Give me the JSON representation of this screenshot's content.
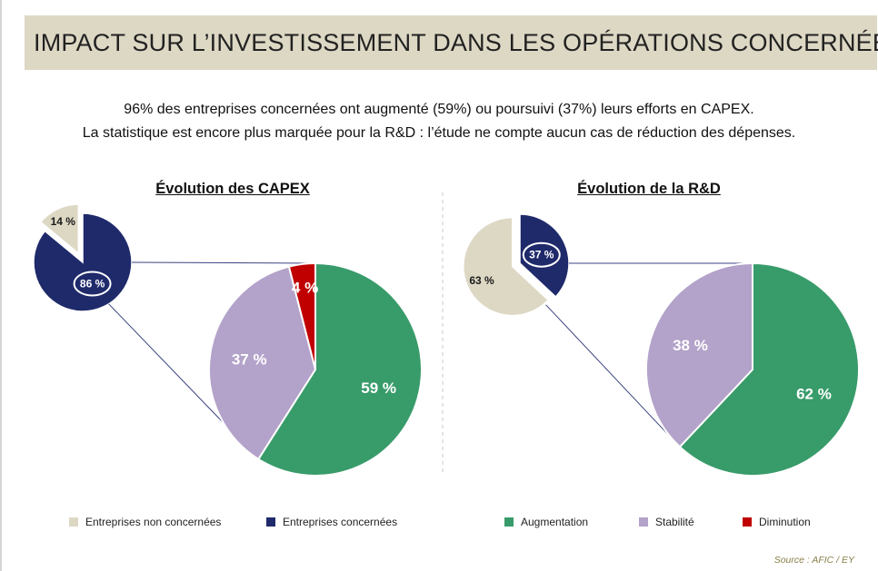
{
  "header": {
    "title": "IMPACT SUR L’INVESTISSEMENT DANS LES OPÉRATIONS CONCERNÉES"
  },
  "intro": {
    "line1": "96% des entreprises concernées ont augmenté (59%) ou poursuivi (37%) leurs efforts en CAPEX.",
    "line2": "La statistique est encore plus marquée pour la R&D : l’étude ne compte aucun cas de réduction des dépenses."
  },
  "colors": {
    "non_concerned": "#ddd8c4",
    "concerned": "#1f2a6b",
    "increase": "#389b6a",
    "stable": "#b3a2c9",
    "decrease": "#c00000",
    "connector": "#3b4380"
  },
  "chart_data": [
    {
      "type": "pie",
      "title": "Évolution des CAPEX",
      "overview": {
        "slices": [
          {
            "label": "Entreprises non concernées",
            "value": 14,
            "text": "14 %"
          },
          {
            "label": "Entreprises concernées",
            "value": 86,
            "text": "86 %"
          }
        ]
      },
      "detail": {
        "of": "Entreprises concernées",
        "slices": [
          {
            "label": "Augmentation",
            "value": 59,
            "text": "59 %"
          },
          {
            "label": "Stabilité",
            "value": 37,
            "text": "37 %"
          },
          {
            "label": "Diminution",
            "value": 4,
            "text": "4 %"
          }
        ]
      }
    },
    {
      "type": "pie",
      "title": "Évolution de la R&D",
      "overview": {
        "slices": [
          {
            "label": "Entreprises non concernées",
            "value": 63,
            "text": "63 %"
          },
          {
            "label": "Entreprises concernées",
            "value": 37,
            "text": "37 %"
          }
        ]
      },
      "detail": {
        "of": "Entreprises concernées",
        "slices": [
          {
            "label": "Augmentation",
            "value": 62,
            "text": "62 %"
          },
          {
            "label": "Stabilité",
            "value": 38,
            "text": "38 %"
          }
        ]
      }
    }
  ],
  "legend": [
    {
      "label": "Entreprises non concernées",
      "color": "#ddd8c4"
    },
    {
      "label": "Entreprises concernées",
      "color": "#1f2a6b"
    },
    {
      "label": "Augmentation",
      "color": "#389b6a"
    },
    {
      "label": "Stabilité",
      "color": "#b3a2c9"
    },
    {
      "label": "Diminution",
      "color": "#c00000"
    }
  ],
  "footer": {
    "source": "Source : AFIC / EY"
  }
}
